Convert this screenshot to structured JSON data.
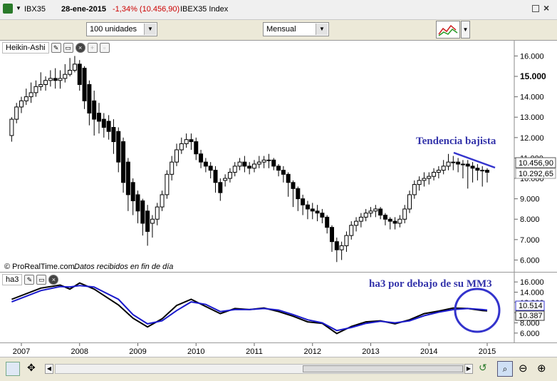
{
  "header": {
    "symbol": "IBX35",
    "date": "28-ene-2015",
    "change": "-1,34% (10.456,90)",
    "instrument": "IBEX35 Index"
  },
  "toolbar": {
    "units": "100 unidades",
    "period": "Mensual"
  },
  "price_panel": {
    "label": "Heikin-Ashi",
    "copyright": "© ProRealTime.com",
    "data_note": "Datos recibidos en fin de día",
    "annotation": "Tendencia bajista",
    "price_tag": "10.456,90",
    "price_tag2": "10.292,65"
  },
  "indicator_panel": {
    "label": "ha3",
    "annotation": "ha3 por debajo de su MM3",
    "tag1": "10.514",
    "tag2": "10.387"
  },
  "colors": {
    "annotation": "#3333aa",
    "trend_line": "#3333cc",
    "ma_line": "#1a1acc",
    "ha_line": "#000000",
    "change_red": "#cc0000",
    "price_tag_bg": "#ffffff"
  },
  "chart_data": [
    {
      "type": "candlestick",
      "series_type": "Heikin-Ashi",
      "x_tick_labels": [
        "2007",
        "2008",
        "2009",
        "2010",
        "2011",
        "2012",
        "2013",
        "2014",
        "2015"
      ],
      "y_tick_labels": [
        "16.000",
        "15.000",
        "14.000",
        "13.000",
        "12.000",
        "11.000",
        "10.000",
        "9.000",
        "8.000",
        "7.000",
        "6.000"
      ],
      "y_tick_bold": "15.000",
      "ylim": [
        5.7,
        16.4
      ],
      "x": [
        "2006-11",
        "2006-12",
        "2007-01",
        "2007-02",
        "2007-03",
        "2007-04",
        "2007-05",
        "2007-06",
        "2007-07",
        "2007-08",
        "2007-09",
        "2007-10",
        "2007-11",
        "2007-12",
        "2008-01",
        "2008-02",
        "2008-03",
        "2008-04",
        "2008-05",
        "2008-06",
        "2008-07",
        "2008-08",
        "2008-09",
        "2008-10",
        "2008-11",
        "2008-12",
        "2009-01",
        "2009-02",
        "2009-03",
        "2009-04",
        "2009-05",
        "2009-06",
        "2009-07",
        "2009-08",
        "2009-09",
        "2009-10",
        "2009-11",
        "2009-12",
        "2010-01",
        "2010-02",
        "2010-03",
        "2010-04",
        "2010-05",
        "2010-06",
        "2010-07",
        "2010-08",
        "2010-09",
        "2010-10",
        "2010-11",
        "2010-12",
        "2011-01",
        "2011-02",
        "2011-03",
        "2011-04",
        "2011-05",
        "2011-06",
        "2011-07",
        "2011-08",
        "2011-09",
        "2011-10",
        "2011-11",
        "2011-12",
        "2012-01",
        "2012-02",
        "2012-03",
        "2012-04",
        "2012-05",
        "2012-06",
        "2012-07",
        "2012-08",
        "2012-09",
        "2012-10",
        "2012-11",
        "2012-12",
        "2013-01",
        "2013-02",
        "2013-03",
        "2013-04",
        "2013-05",
        "2013-06",
        "2013-07",
        "2013-08",
        "2013-09",
        "2013-10",
        "2013-11",
        "2013-12",
        "2014-01",
        "2014-02",
        "2014-03",
        "2014-04",
        "2014-05",
        "2014-06",
        "2014-07",
        "2014-08",
        "2014-09",
        "2014-10",
        "2014-11",
        "2014-12",
        "2015-01"
      ],
      "open": [
        12.1,
        12.9,
        13.5,
        13.8,
        14.0,
        14.2,
        14.5,
        14.6,
        14.8,
        14.9,
        14.8,
        14.9,
        15.1,
        15.3,
        15.6,
        15.4,
        14.6,
        13.8,
        13.2,
        12.9,
        12.8,
        12.5,
        12.3,
        11.8,
        10.8,
        9.8,
        9.2,
        8.9,
        8.4,
        7.8,
        8.0,
        8.6,
        9.2,
        10.2,
        10.8,
        11.4,
        11.7,
        11.9,
        11.8,
        11.2,
        10.8,
        10.6,
        10.4,
        9.8,
        9.9,
        10.0,
        10.3,
        10.6,
        10.8,
        10.6,
        10.5,
        10.7,
        10.8,
        10.9,
        10.9,
        10.6,
        10.4,
        10.2,
        9.8,
        9.5,
        9.0,
        8.7,
        8.5,
        8.4,
        8.3,
        8.1,
        7.6,
        6.9,
        6.5,
        6.7,
        7.2,
        7.7,
        7.9,
        8.1,
        8.3,
        8.4,
        8.5,
        8.2,
        8.0,
        7.9,
        7.8,
        8.0,
        8.5,
        9.2,
        9.7,
        9.9,
        10.0,
        10.1,
        10.3,
        10.4,
        10.6,
        10.8,
        10.8,
        10.7,
        10.7,
        10.6,
        10.5,
        10.4,
        10.4
      ],
      "close": [
        12.9,
        13.5,
        13.8,
        14.0,
        14.2,
        14.5,
        14.6,
        14.8,
        14.9,
        14.8,
        14.9,
        15.1,
        15.3,
        15.6,
        14.6,
        13.8,
        13.2,
        12.9,
        12.8,
        12.5,
        12.3,
        11.8,
        10.8,
        9.8,
        9.2,
        8.9,
        8.4,
        7.8,
        7.4,
        8.0,
        8.6,
        9.2,
        10.2,
        10.8,
        11.4,
        11.7,
        11.9,
        11.8,
        11.2,
        10.8,
        10.6,
        10.4,
        9.8,
        9.3,
        10.0,
        10.3,
        10.6,
        10.8,
        10.6,
        10.5,
        10.7,
        10.8,
        10.9,
        10.9,
        10.6,
        10.4,
        10.2,
        9.8,
        9.5,
        9.0,
        8.7,
        8.5,
        8.4,
        8.3,
        8.1,
        7.6,
        6.9,
        6.5,
        6.7,
        7.2,
        7.7,
        7.9,
        8.1,
        8.3,
        8.4,
        8.5,
        8.2,
        8.0,
        7.9,
        7.8,
        8.0,
        8.5,
        9.2,
        9.7,
        9.9,
        10.0,
        10.1,
        10.3,
        10.4,
        10.6,
        10.8,
        10.8,
        10.7,
        10.7,
        10.6,
        10.5,
        10.4,
        10.4,
        10.3
      ],
      "high": [
        13.0,
        13.7,
        14.0,
        14.4,
        14.7,
        14.8,
        15.2,
        15.0,
        15.3,
        15.4,
        15.3,
        15.6,
        15.9,
        16.0,
        15.8,
        15.5,
        14.8,
        14.3,
        13.7,
        13.2,
        13.1,
        12.9,
        12.5,
        12.0,
        11.0,
        10.0,
        9.4,
        9.0,
        8.7,
        8.2,
        8.8,
        9.4,
        10.4,
        11.1,
        11.7,
        12.0,
        12.2,
        12.2,
        12.0,
        11.4,
        11.0,
        10.8,
        10.6,
        10.0,
        10.2,
        10.5,
        10.8,
        11.0,
        11.1,
        10.8,
        10.9,
        11.1,
        11.1,
        11.2,
        11.0,
        10.7,
        10.6,
        10.3,
        9.9,
        9.6,
        9.2,
        8.9,
        8.8,
        8.7,
        8.5,
        8.2,
        7.7,
        7.1,
        6.9,
        7.4,
        7.9,
        8.1,
        8.3,
        8.5,
        8.6,
        8.7,
        8.6,
        8.3,
        8.1,
        8.1,
        8.2,
        8.7,
        9.4,
        9.9,
        10.1,
        10.3,
        10.3,
        10.5,
        10.6,
        10.9,
        11.2,
        11.1,
        11.0,
        10.9,
        10.9,
        10.8,
        10.7,
        10.6,
        10.5
      ],
      "low": [
        11.8,
        12.7,
        13.2,
        13.6,
        13.7,
        14.0,
        14.3,
        14.3,
        14.5,
        14.4,
        14.4,
        14.7,
        15.0,
        15.2,
        14.3,
        13.4,
        12.6,
        12.1,
        12.2,
        12.0,
        11.9,
        11.2,
        10.3,
        9.3,
        8.4,
        8.2,
        7.8,
        7.2,
        6.7,
        7.1,
        7.7,
        8.4,
        9.0,
        9.9,
        10.6,
        11.2,
        11.5,
        11.4,
        10.9,
        10.5,
        10.3,
        10.0,
        9.3,
        8.9,
        9.6,
        9.8,
        10.1,
        10.4,
        10.3,
        10.2,
        10.3,
        10.5,
        10.5,
        10.5,
        10.4,
        10.1,
        9.8,
        9.1,
        8.6,
        8.4,
        8.2,
        8.0,
        8.0,
        7.9,
        7.8,
        7.3,
        6.4,
        5.9,
        6.0,
        6.4,
        7.0,
        7.4,
        7.6,
        7.9,
        8.1,
        8.1,
        8.0,
        7.7,
        7.5,
        7.5,
        7.6,
        7.8,
        8.3,
        9.0,
        9.4,
        9.6,
        9.7,
        9.9,
        10.0,
        10.2,
        10.4,
        10.4,
        10.3,
        10.0,
        9.5,
        9.8,
        9.9,
        9.6,
        9.8
      ]
    },
    {
      "type": "line",
      "name": "ha3",
      "y_tick_labels": [
        "16.000",
        "14.000",
        "12.000",
        "10.000",
        "8.000",
        "6.000"
      ],
      "ylim": [
        5.0,
        17.0
      ],
      "x": [
        "2006-11",
        "2007-05",
        "2007-09",
        "2007-11",
        "2008-01",
        "2008-04",
        "2008-09",
        "2008-12",
        "2009-03",
        "2009-06",
        "2009-09",
        "2009-12",
        "2010-03",
        "2010-06",
        "2010-09",
        "2010-12",
        "2011-03",
        "2011-06",
        "2011-09",
        "2011-12",
        "2012-03",
        "2012-06",
        "2012-09",
        "2012-12",
        "2013-03",
        "2013-06",
        "2013-09",
        "2013-12",
        "2014-03",
        "2014-06",
        "2014-09",
        "2014-12",
        "2015-01"
      ],
      "series": [
        {
          "name": "ha3",
          "values": [
            12.6,
            14.8,
            15.4,
            14.6,
            15.8,
            14.6,
            11.5,
            8.9,
            7.2,
            8.8,
            11.4,
            12.6,
            11.2,
            9.8,
            10.8,
            10.6,
            10.9,
            10.2,
            9.3,
            8.2,
            7.9,
            5.9,
            7.3,
            8.2,
            8.4,
            7.8,
            8.6,
            9.8,
            10.3,
            10.9,
            10.8,
            10.4,
            10.35
          ]
        },
        {
          "name": "MM3",
          "values": [
            12.1,
            14.3,
            15.1,
            15.0,
            15.3,
            15.0,
            12.6,
            9.6,
            7.8,
            8.4,
            10.4,
            12.1,
            11.6,
            10.2,
            10.6,
            10.6,
            10.8,
            10.5,
            9.6,
            8.6,
            8.0,
            6.5,
            7.1,
            7.9,
            8.3,
            8.0,
            8.4,
            9.4,
            10.1,
            10.6,
            10.8,
            10.6,
            10.5
          ]
        }
      ]
    }
  ]
}
